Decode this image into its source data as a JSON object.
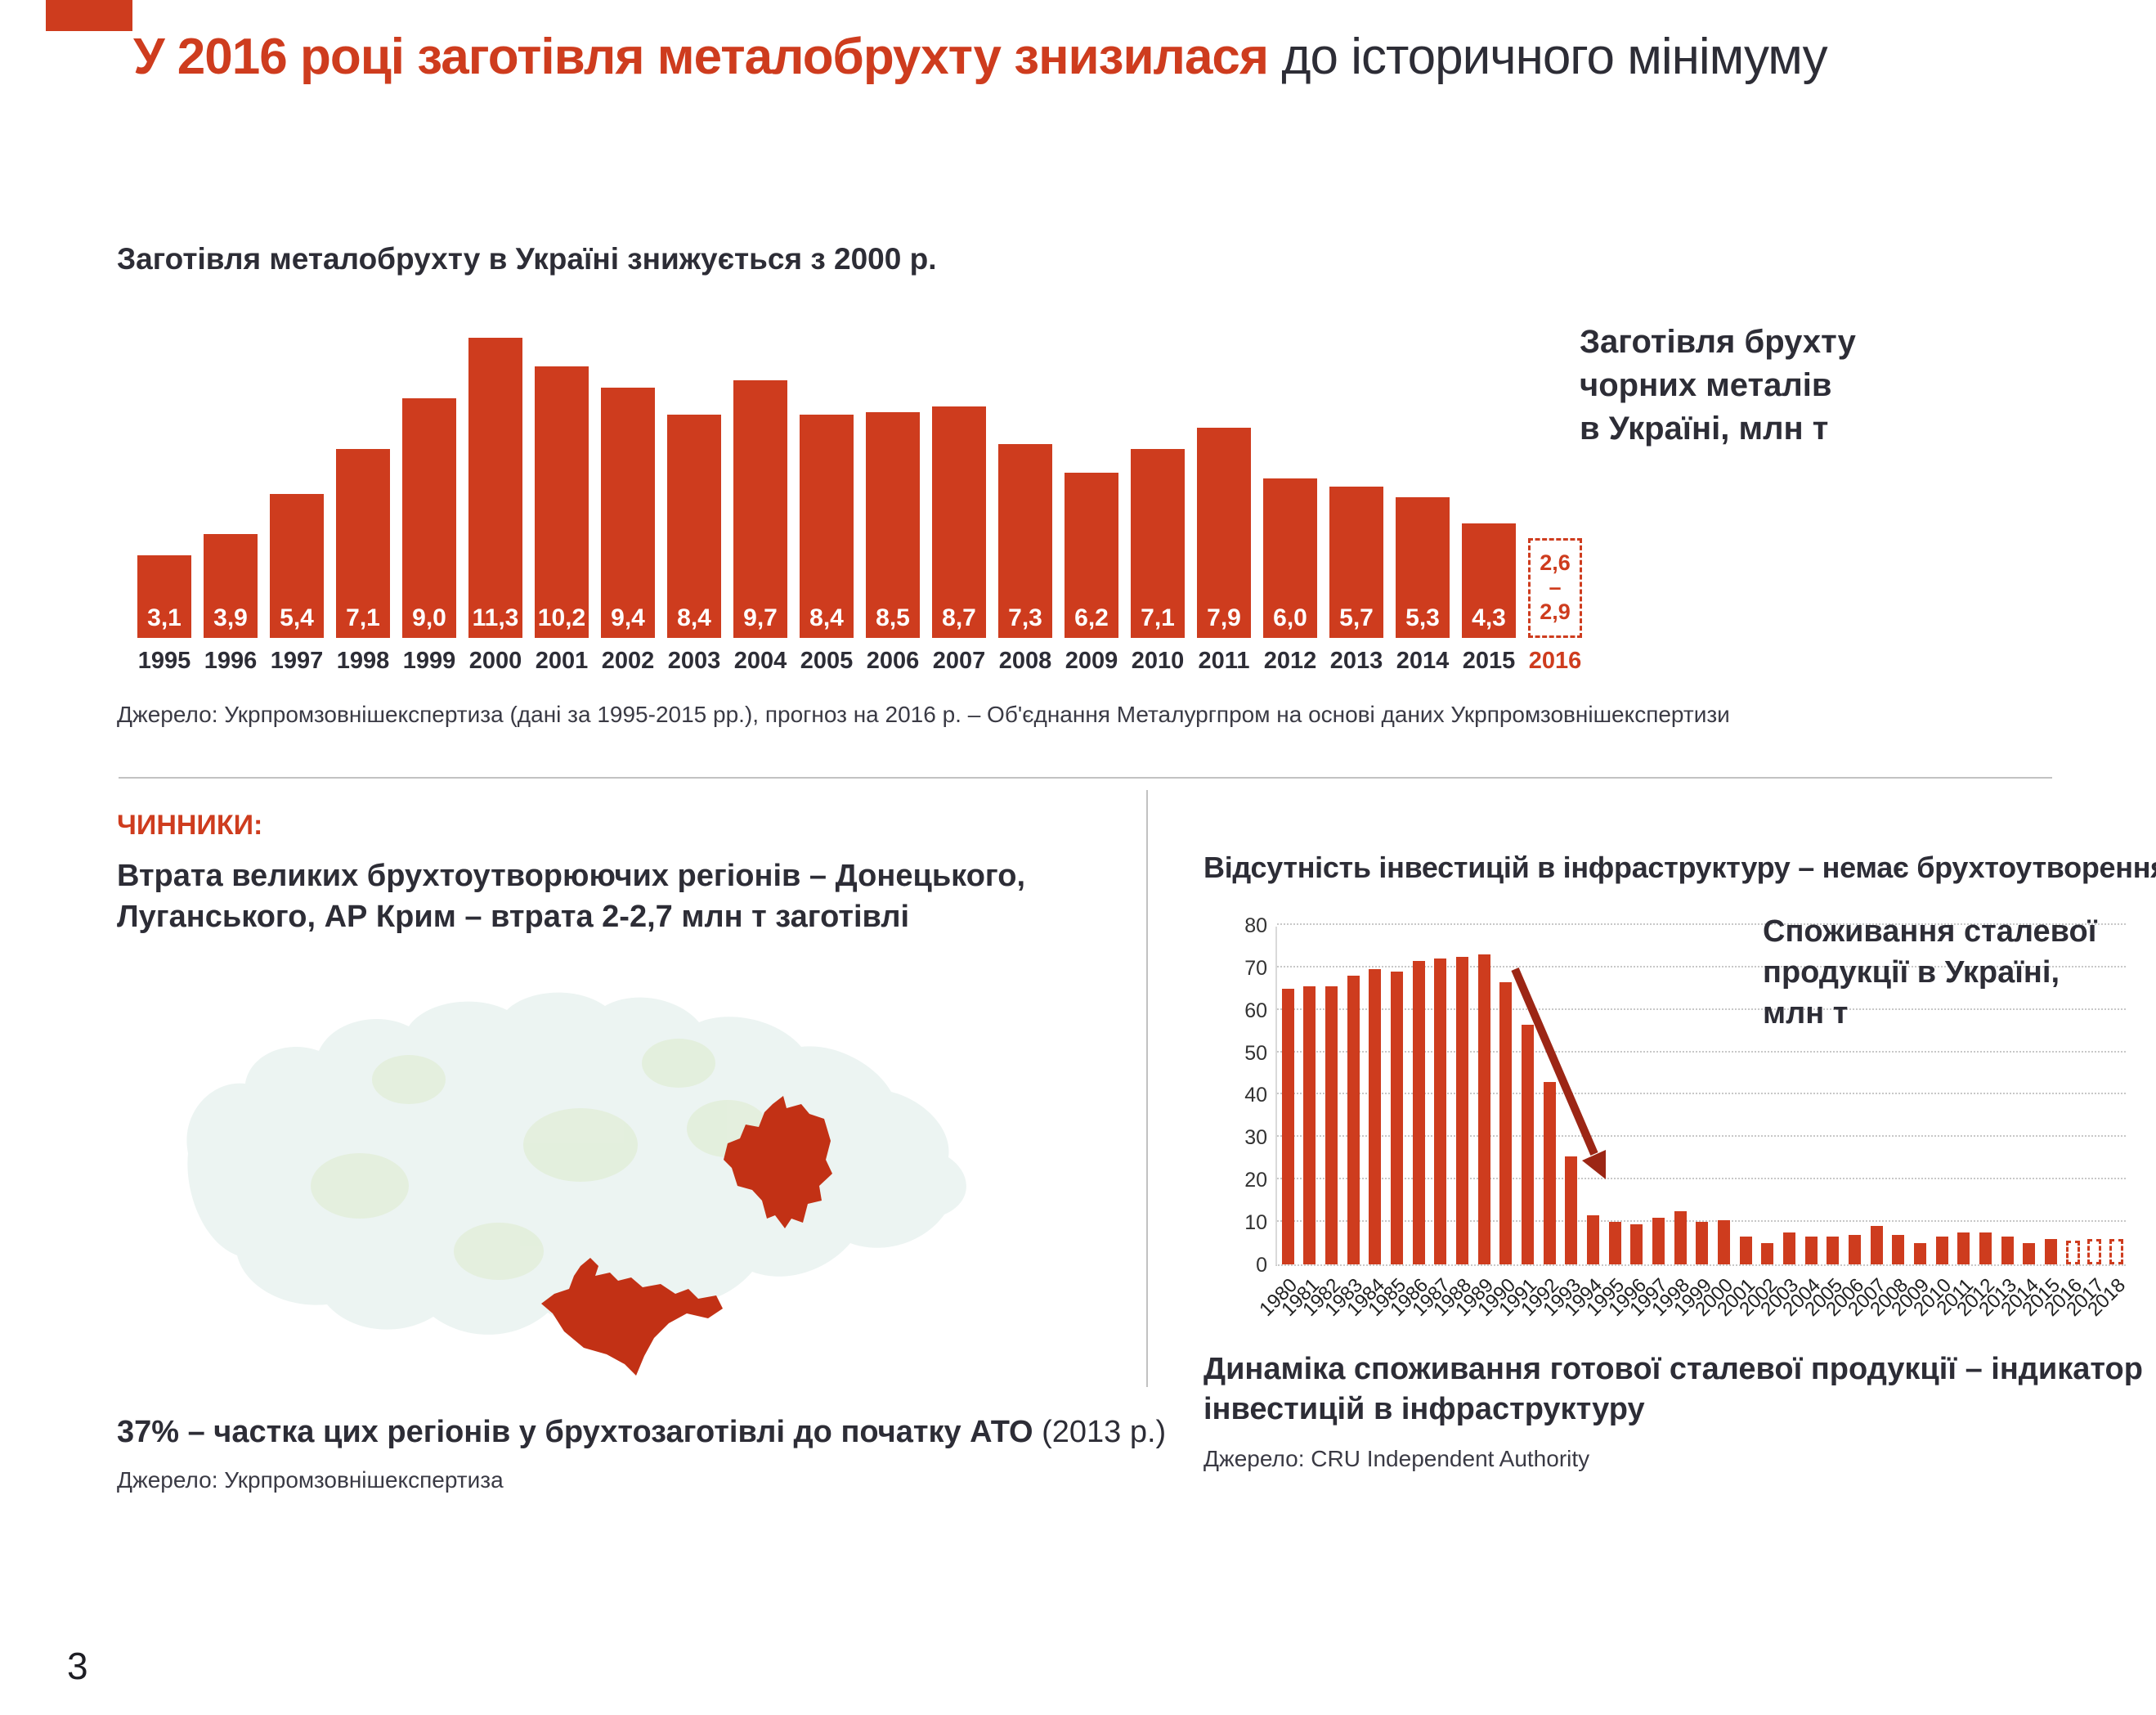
{
  "slide": {
    "page_number": "3",
    "title_highlight": "У 2016 році заготівля металобрухту знизилася",
    "title_rest": " до історичного мінімуму"
  },
  "colors": {
    "accent": "#ce3c1e",
    "dark_text": "#2d2d36",
    "map_region_red": "#c23115",
    "arrow": "#9c2615",
    "grid": "#c8c8c8",
    "divider": "#c2c2c2",
    "map_faint_fill": "#ecf4f2",
    "map_dots_fill": "#e2eed8"
  },
  "scrap_chart": {
    "subtitle": "Заготівля металобрухту в Україні знижується з 2000 р.",
    "legend_lines": [
      "Заготівля брухту",
      "чорних металів",
      "в Україні, млн т"
    ],
    "source": "Джерело: Укрпромзовнішекспертиза (дані за 1995-2015 рр.), прогноз на 2016 р. – Об'єднання Металургпром на основі даних Укрпромзовнішекспертизи"
  },
  "factors": {
    "heading": "ЧИННИКИ:",
    "loss_text": "Втрата великих брухтоутворюючих регіонів – Донецького, Луганського, АР Крим – втрата 2-2,7 млн т заготівлі",
    "share_bold": "37% – частка цих регіонів у брухтозаготівлі до початку АТО",
    "share_note": " (2013 р.)",
    "source": "Джерело: Укрпромзовнішекспертиза"
  },
  "investment": {
    "heading": "Відсутність інвестицій в інфраструктуру – немає брухтоутворення",
    "legend_lines": [
      "Споживання сталевої",
      "продукції в Україні,",
      "млн т"
    ],
    "caption": "Динаміка споживання готової сталевої продукції – індикатор інвестицій в інфраструктуру",
    "source": "Джерело: CRU Independent Authority"
  },
  "chart_data": [
    {
      "type": "bar",
      "title": "Заготівля металобрухту в Україні знижується з 2000 р.",
      "legend": "Заготівля брухту чорних металів в Україні, млн т",
      "ylabel": "млн т",
      "ylim": [
        0,
        12
      ],
      "categories": [
        "1995",
        "1996",
        "1997",
        "1998",
        "1999",
        "2000",
        "2001",
        "2002",
        "2003",
        "2004",
        "2005",
        "2006",
        "2007",
        "2008",
        "2009",
        "2010",
        "2011",
        "2012",
        "2013",
        "2014",
        "2015"
      ],
      "values": [
        3.1,
        3.9,
        5.4,
        7.1,
        9.0,
        11.3,
        10.2,
        9.4,
        8.4,
        9.7,
        8.4,
        8.5,
        8.7,
        7.3,
        6.2,
        7.1,
        7.9,
        6.0,
        5.7,
        5.3,
        4.3
      ],
      "value_labels": [
        "3,1",
        "3,9",
        "5,4",
        "7,1",
        "9,0",
        "11,3",
        "10,2",
        "9,4",
        "8,4",
        "9,7",
        "8,4",
        "8,5",
        "8,7",
        "7,3",
        "6,2",
        "7,1",
        "7,9",
        "6,0",
        "5,7",
        "5,3",
        "4,3"
      ],
      "forecast": {
        "year": "2016",
        "low": 2.6,
        "high": 2.9,
        "low_label": "2,6",
        "dash": "–",
        "high_label": "2,9"
      }
    },
    {
      "type": "bar",
      "legend": "Споживання сталевої продукції в Україні, млн т",
      "caption": "Динаміка споживання готової сталевої продукції – індикатор інвестицій в інфраструктуру",
      "ylim": [
        0,
        80
      ],
      "yticks": [
        0,
        10,
        20,
        30,
        40,
        50,
        60,
        70,
        80
      ],
      "grid": "dotted-horizontal",
      "x": [
        1980,
        1981,
        1982,
        1983,
        1984,
        1985,
        1986,
        1987,
        1988,
        1989,
        1990,
        1991,
        1992,
        1993,
        1994,
        1995,
        1996,
        1997,
        1998,
        1999,
        2000,
        2001,
        2002,
        2003,
        2004,
        2005,
        2006,
        2007,
        2008,
        2009,
        2010,
        2011,
        2012,
        2013,
        2014,
        2015,
        2016,
        2017,
        2018
      ],
      "values": [
        65,
        65.5,
        65.5,
        68,
        69.5,
        69,
        71.5,
        72,
        72.5,
        73,
        66.5,
        56.5,
        43,
        25.5,
        11.5,
        10,
        9.5,
        11,
        12.5,
        10,
        10.5,
        6.5,
        5,
        7.5,
        6.5,
        6.5,
        7,
        9,
        7,
        5,
        6.5,
        7.5,
        7.5,
        6.5,
        5,
        6,
        5.5,
        6,
        6
      ],
      "forecast_years": [
        2016,
        2017,
        2018
      ]
    }
  ]
}
